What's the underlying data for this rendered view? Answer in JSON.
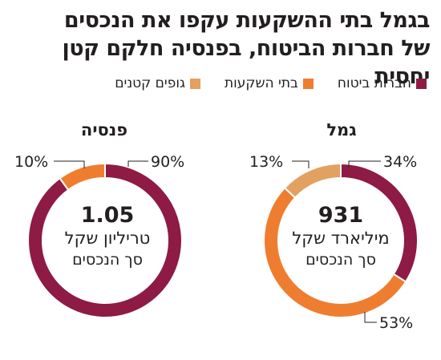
{
  "title": {
    "line1": "בגמל בתי ההשקעות עקפו את הנכסים",
    "line2": "של חברות הביטוח, בפנסיה חלקם קטן יחסית"
  },
  "legend": [
    {
      "label": "חברות ביטוח",
      "color": "#8e1b43"
    },
    {
      "label": "בתי השקעות",
      "color": "#ef7d30"
    },
    {
      "label": "גופים קטנים",
      "color": "#e2a160"
    }
  ],
  "chart_data": [
    {
      "type": "pie",
      "title": "גמל",
      "center_value": "931",
      "center_unit": "מיליארד שקל",
      "center_sub": "סך הנכסים",
      "slices": [
        {
          "name": "חברות ביטוח",
          "value": 34,
          "label": "34%",
          "color": "#8e1b43"
        },
        {
          "name": "בתי השקעות",
          "value": 53,
          "label": "53%",
          "color": "#ef7d30"
        },
        {
          "name": "גופים קטנים",
          "value": 13,
          "label": "13%",
          "color": "#e2a160"
        }
      ]
    },
    {
      "type": "pie",
      "title": "פנסיה",
      "center_value": "1.05",
      "center_unit": "טריליון שקל",
      "center_sub": "סך הנכסים",
      "slices": [
        {
          "name": "חברות ביטוח",
          "value": 90,
          "label": "90%",
          "color": "#8e1b43"
        },
        {
          "name": "בתי השקעות",
          "value": 10,
          "label": "10%",
          "color": "#ef7d30"
        }
      ]
    }
  ]
}
